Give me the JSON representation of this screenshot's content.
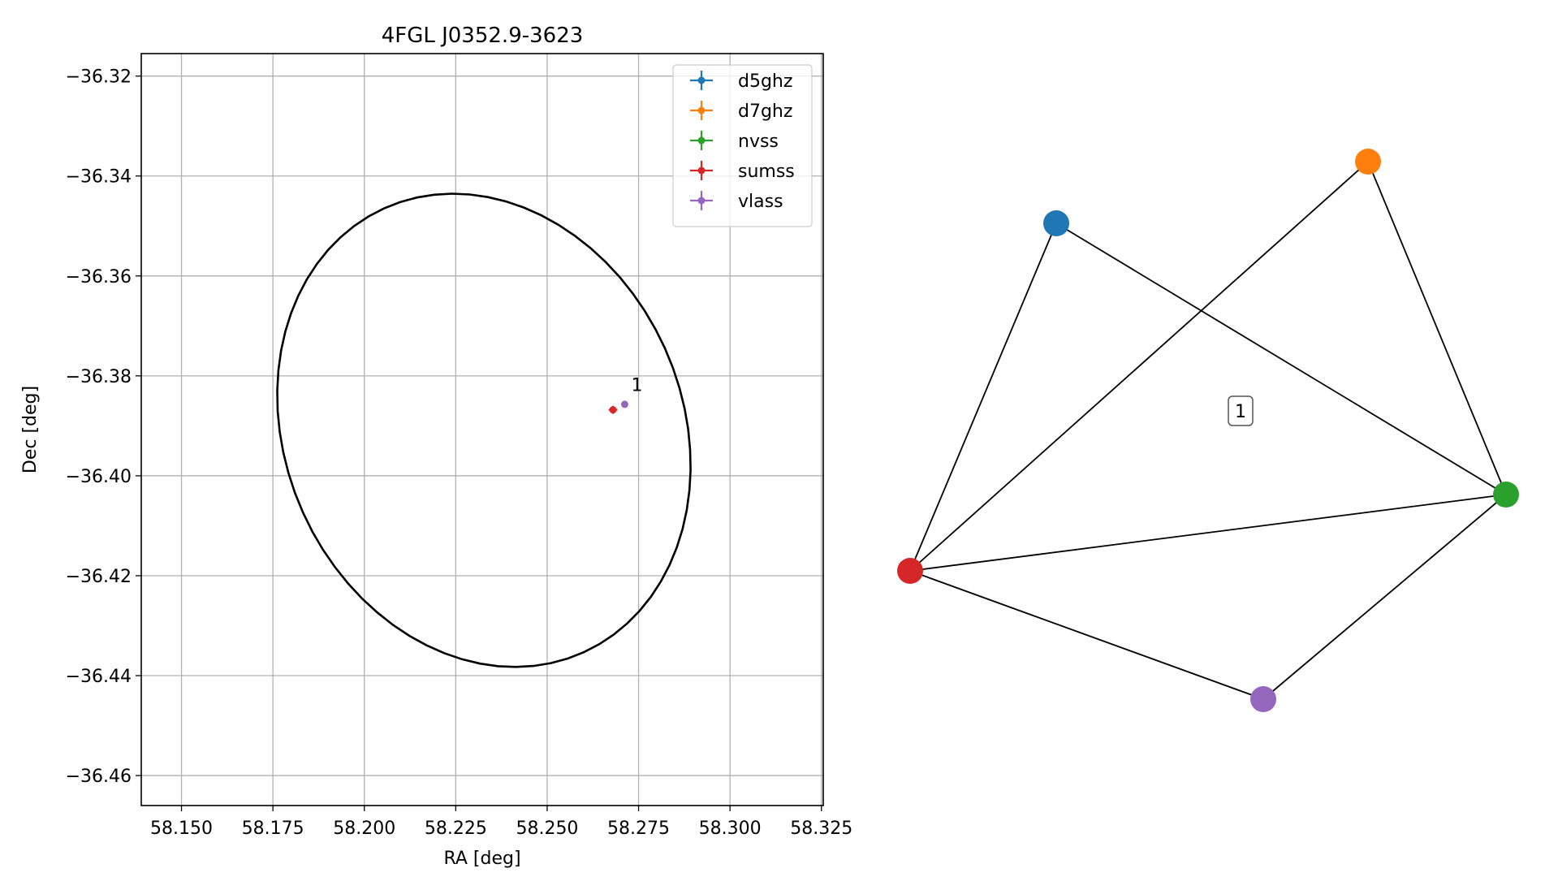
{
  "chart_data": [
    {
      "type": "scatter",
      "title": "4FGL J0352.9-3623",
      "xlabel": "RA [deg]",
      "ylabel": "Dec [deg]",
      "xlim": [
        58.139,
        58.3255
      ],
      "ylim": [
        -36.466,
        -36.3155
      ],
      "xticks": [
        58.15,
        58.175,
        58.2,
        58.225,
        58.25,
        58.275,
        58.3,
        58.325
      ],
      "xtick_labels": [
        "58.150",
        "58.175",
        "58.200",
        "58.225",
        "58.250",
        "58.275",
        "58.300",
        "58.325"
      ],
      "yticks": [
        -36.32,
        -36.34,
        -36.36,
        -36.38,
        -36.4,
        -36.42,
        -36.44,
        -36.46
      ],
      "ytick_labels": [
        "−36.32",
        "−36.34",
        "−36.36",
        "−36.38",
        "−36.40",
        "−36.42",
        "−36.44",
        "−36.46"
      ],
      "grid": true,
      "legend_position": "upper right",
      "series": [
        {
          "name": "d5ghz",
          "color": "#1f77b4",
          "points": []
        },
        {
          "name": "d7ghz",
          "color": "#ff7f0e",
          "points": []
        },
        {
          "name": "nvss",
          "color": "#2ca02c",
          "points": []
        },
        {
          "name": "sumss",
          "color": "#d62728",
          "points": [
            {
              "x": 58.268,
              "y": -36.3868,
              "xerr": 0.0012,
              "yerr": 0.0008
            }
          ]
        },
        {
          "name": "vlass",
          "color": "#9467bd",
          "points": [
            {
              "x": 58.2712,
              "y": -36.3857,
              "xerr": 0.0006,
              "yerr": 0.0005
            }
          ]
        }
      ],
      "ellipse": {
        "center": [
          58.2327,
          -36.3909
        ],
        "semi_axes": [
          0.0578,
          0.0458
        ],
        "angle_deg": -20,
        "color": "#000000"
      },
      "annotations": [
        {
          "text": "1",
          "x": 58.273,
          "y": -36.383
        }
      ]
    },
    {
      "type": "network",
      "nodes": [
        {
          "id": "d5ghz",
          "color": "#1f77b4"
        },
        {
          "id": "d7ghz",
          "color": "#ff7f0e"
        },
        {
          "id": "nvss",
          "color": "#2ca02c"
        },
        {
          "id": "sumss",
          "color": "#d62728"
        },
        {
          "id": "vlass",
          "color": "#9467bd"
        }
      ],
      "edges": [
        [
          "d5ghz",
          "sumss"
        ],
        [
          "d5ghz",
          "nvss"
        ],
        [
          "d7ghz",
          "sumss"
        ],
        [
          "d7ghz",
          "nvss"
        ],
        [
          "sumss",
          "nvss"
        ],
        [
          "sumss",
          "vlass"
        ],
        [
          "vlass",
          "nvss"
        ]
      ],
      "cluster_label": "1"
    }
  ]
}
